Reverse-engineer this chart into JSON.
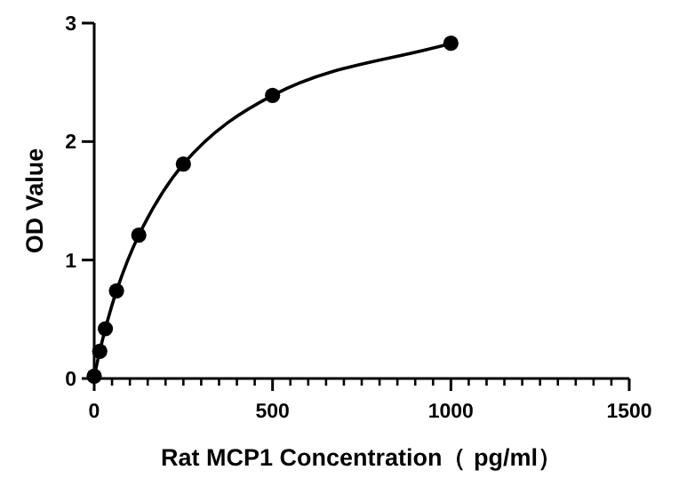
{
  "chart_data": {
    "type": "line",
    "xlabel": "Rat MCP1 Concentration（ pg/ml）",
    "ylabel": "OD Value",
    "x": [
      0,
      15.6,
      31.25,
      62.5,
      125,
      250,
      500,
      1000
    ],
    "series": [
      {
        "color": "#000000",
        "values": [
          0.02,
          0.23,
          0.42,
          0.74,
          1.21,
          1.81,
          2.39,
          2.83
        ]
      }
    ],
    "marker": "circle",
    "line_style": "solid",
    "grid": false,
    "xlim": [
      0,
      1500
    ],
    "ylim": [
      0,
      3
    ],
    "xticks": [
      0,
      500,
      1000,
      1500
    ],
    "yticks": [
      0,
      1,
      2,
      3
    ]
  }
}
